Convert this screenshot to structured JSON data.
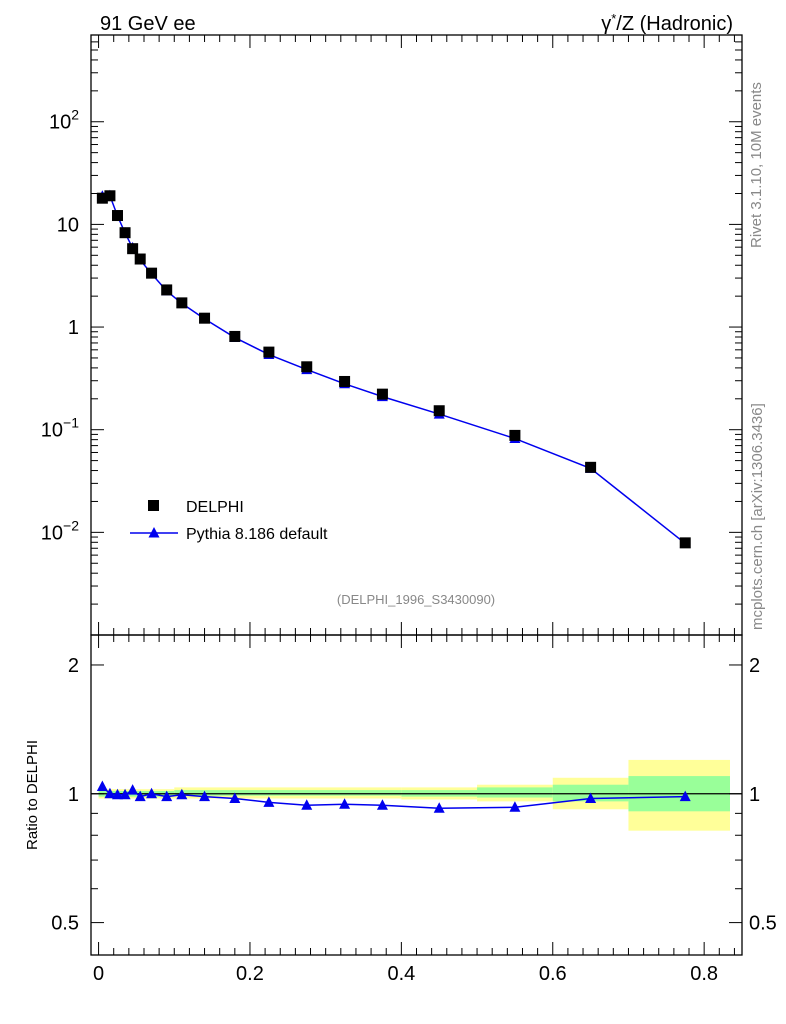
{
  "header": {
    "left": "91 GeV ee",
    "right_prefix": "γ",
    "right_sup": "*",
    "right_suffix": "/Z (Hadronic)"
  },
  "side": {
    "rivet": "Rivet 3.1.10,  10M events",
    "mcplots": "mcplots.cern.ch [arXiv:1306.3436]"
  },
  "analysis_id": "(DELPHI_1996_S3430090)",
  "legend": {
    "data_label": "DELPHI",
    "mc_label": "Pythia 8.186 default"
  },
  "ratio_ylabel": "Ratio to DELPHI",
  "colors": {
    "mc": "#0000ee",
    "data": "#000000",
    "band_inner": "#99ff99",
    "band_outer": "#ffff99"
  },
  "chart_data": [
    {
      "type": "scatter",
      "yscale": "log",
      "ylim": [
        0.001,
        700
      ],
      "xlim": [
        -0.01,
        0.85
      ],
      "ytick_labels": [
        {
          "v": 0.01,
          "base": "10",
          "exp": "−2"
        },
        {
          "v": 0.1,
          "base": "10",
          "exp": "−1"
        },
        {
          "v": 1,
          "base": "1",
          "exp": ""
        },
        {
          "v": 10,
          "base": "10",
          "exp": ""
        },
        {
          "v": 100,
          "base": "10",
          "exp": "2"
        }
      ],
      "series": [
        {
          "name": "DELPHI",
          "marker": "square",
          "x": [
            0.005,
            0.015,
            0.025,
            0.035,
            0.045,
            0.055,
            0.07,
            0.09,
            0.11,
            0.14,
            0.18,
            0.225,
            0.275,
            0.325,
            0.375,
            0.45,
            0.55,
            0.65,
            0.775
          ],
          "y": [
            18.0,
            19.0,
            12.2,
            8.3,
            5.8,
            4.6,
            3.35,
            2.3,
            1.72,
            1.22,
            0.81,
            0.57,
            0.41,
            0.295,
            0.222,
            0.153,
            0.088,
            0.043,
            0.0079
          ]
        },
        {
          "name": "Pythia 8.186 default",
          "marker": "triangle",
          "x": [
            0.005,
            0.015,
            0.025,
            0.035,
            0.045,
            0.055,
            0.07,
            0.09,
            0.11,
            0.14,
            0.18,
            0.225,
            0.275,
            0.325,
            0.375,
            0.45,
            0.55,
            0.65,
            0.775
          ],
          "y": [
            18.8,
            19.0,
            12.1,
            8.25,
            5.9,
            4.5,
            3.3,
            2.25,
            1.7,
            1.2,
            0.79,
            0.54,
            0.385,
            0.28,
            0.21,
            0.142,
            0.082,
            0.042,
            0.0078
          ]
        }
      ]
    },
    {
      "type": "line",
      "yscale": "log",
      "ylim": [
        0.42,
        2.35
      ],
      "xlim": [
        -0.01,
        0.85
      ],
      "ylabel": "Ratio to DELPHI",
      "xticks": [
        0,
        0.2,
        0.4,
        0.6,
        0.8
      ],
      "xtick_labels": [
        "0",
        "0.2",
        "0.4",
        "0.6",
        "0.8"
      ],
      "yticks": [
        0.5,
        1,
        2
      ],
      "ytick_labels": [
        "0.5",
        "1",
        "2"
      ],
      "reference_line": 1,
      "bands": [
        {
          "x0": 0.0,
          "x1": 0.1,
          "inner": [
            0.985,
            1.015
          ],
          "outer": [
            0.975,
            1.025
          ]
        },
        {
          "x0": 0.1,
          "x1": 0.4,
          "inner": [
            0.99,
            1.02
          ],
          "outer": [
            0.975,
            1.035
          ]
        },
        {
          "x0": 0.4,
          "x1": 0.5,
          "inner": [
            0.985,
            1.02
          ],
          "outer": [
            0.97,
            1.035
          ]
        },
        {
          "x0": 0.5,
          "x1": 0.6,
          "inner": [
            0.98,
            1.035
          ],
          "outer": [
            0.96,
            1.05
          ]
        },
        {
          "x0": 0.6,
          "x1": 0.7,
          "inner": [
            0.96,
            1.05
          ],
          "outer": [
            0.92,
            1.09
          ]
        },
        {
          "x0": 0.7,
          "x1": 0.85,
          "inner": [
            0.91,
            1.1
          ],
          "outer": [
            0.82,
            1.2
          ]
        }
      ],
      "series": [
        {
          "name": "Pythia 8.186 default",
          "x": [
            0.005,
            0.015,
            0.025,
            0.035,
            0.045,
            0.055,
            0.07,
            0.09,
            0.11,
            0.14,
            0.18,
            0.225,
            0.275,
            0.325,
            0.375,
            0.45,
            0.55,
            0.65,
            0.775
          ],
          "y": [
            1.04,
            1.0,
            0.995,
            0.995,
            1.02,
            0.985,
            1.0,
            0.985,
            0.995,
            0.985,
            0.975,
            0.955,
            0.94,
            0.945,
            0.94,
            0.925,
            0.93,
            0.975,
            0.985
          ]
        }
      ]
    }
  ]
}
